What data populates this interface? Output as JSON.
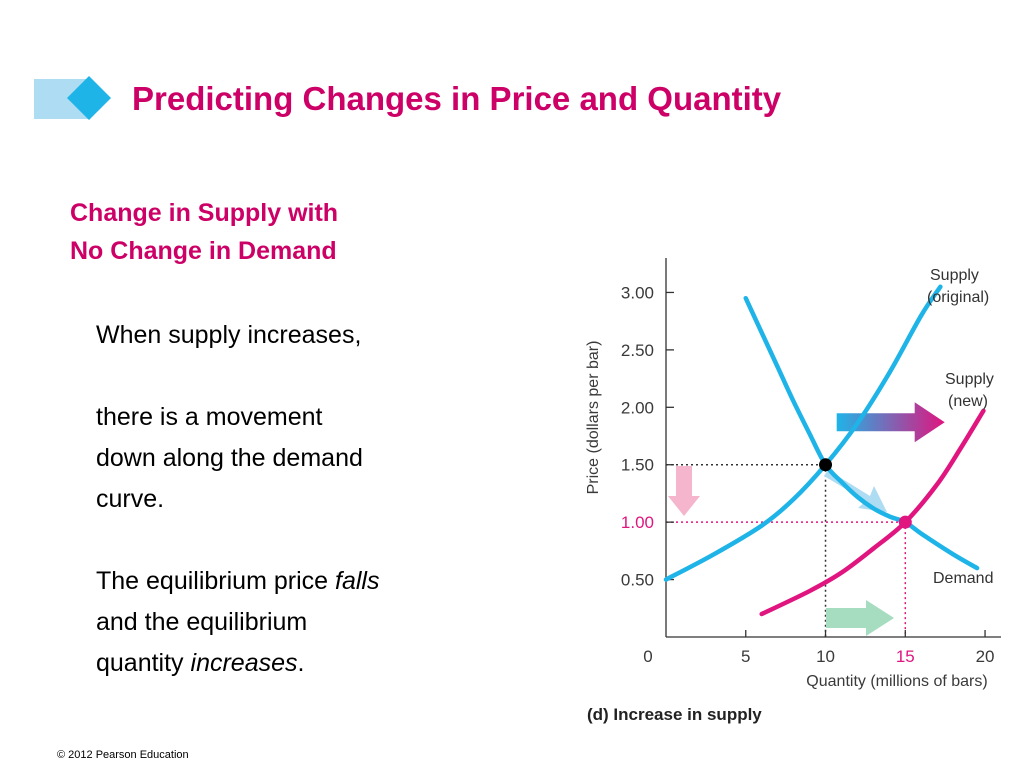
{
  "slide": {
    "title": "Predicting Changes in Price and Quantity",
    "subtitle_line1": "Change in Supply with",
    "subtitle_line2": "No Change in Demand",
    "para1": "When supply increases,",
    "para2_line1": "there is a movement",
    "para2_line2": "down along the demand",
    "para2_line3": "curve.",
    "para3_line1_pre": "The equilibrium price ",
    "para3_line1_em": "falls",
    "para3_line2": "and the equilibrium",
    "para3_line3_pre": "quantity ",
    "para3_line3_em": "increases",
    "para3_line3_post": ".",
    "footer": "© 2012 Pearson Education"
  },
  "colors": {
    "accent": "#cc0066",
    "cyan": "#1fb4e8",
    "magenta": "#e0157f",
    "light_cyan": "#aedcf2",
    "light_pink": "#f5b5cc",
    "light_green": "#a6dcc0"
  },
  "chart_data": {
    "type": "line",
    "caption": "(d) Increase in supply",
    "xlabel": "Quantity (millions of bars)",
    "ylabel": "Price (dollars per bar)",
    "xlim": [
      0,
      21
    ],
    "ylim": [
      0,
      3.3
    ],
    "x_ticks": [
      {
        "value": 0,
        "label": "0"
      },
      {
        "value": 5,
        "label": "5"
      },
      {
        "value": 10,
        "label": "10"
      },
      {
        "value": 15,
        "label": "15",
        "highlight": true
      },
      {
        "value": 20,
        "label": "20"
      }
    ],
    "y_ticks": [
      {
        "value": 0.5,
        "label": "0.50"
      },
      {
        "value": 1.0,
        "label": "1.00",
        "highlight": true
      },
      {
        "value": 1.5,
        "label": "1.50"
      },
      {
        "value": 2.0,
        "label": "2.00"
      },
      {
        "value": 2.5,
        "label": "2.50"
      },
      {
        "value": 3.0,
        "label": "3.00"
      }
    ],
    "series": [
      {
        "key": "demand",
        "label": "Demand",
        "color": "#1fb4e8",
        "points": [
          [
            5,
            2.95
          ],
          [
            7,
            2.35
          ],
          [
            8,
            2.05
          ],
          [
            9,
            1.77
          ],
          [
            10,
            1.5
          ],
          [
            11,
            1.35
          ],
          [
            12,
            1.22
          ],
          [
            13,
            1.12
          ],
          [
            14,
            1.05
          ],
          [
            15,
            1.0
          ],
          [
            16,
            0.9
          ],
          [
            18,
            0.72
          ],
          [
            19.5,
            0.6
          ]
        ]
      },
      {
        "key": "supply_original",
        "label_lines": [
          "Supply",
          "(original)"
        ],
        "color": "#1fb4e8",
        "points": [
          [
            0,
            0.5
          ],
          [
            3,
            0.72
          ],
          [
            6,
            0.97
          ],
          [
            8,
            1.2
          ],
          [
            10,
            1.5
          ],
          [
            12,
            1.86
          ],
          [
            14,
            2.3
          ],
          [
            16,
            2.8
          ],
          [
            17.2,
            3.05
          ]
        ]
      },
      {
        "key": "supply_new",
        "label_lines": [
          "Supply",
          "(new)"
        ],
        "color": "#e0157f",
        "points": [
          [
            6,
            0.2
          ],
          [
            9,
            0.4
          ],
          [
            11,
            0.56
          ],
          [
            13,
            0.77
          ],
          [
            15,
            1.0
          ],
          [
            17,
            1.33
          ],
          [
            18.5,
            1.65
          ],
          [
            19.9,
            1.97
          ]
        ]
      }
    ],
    "equilibria": [
      {
        "key": "original",
        "x": 10,
        "y": 1.5,
        "color": "#000000"
      },
      {
        "key": "new",
        "x": 15,
        "y": 1.0,
        "color": "#e0157f"
      }
    ]
  }
}
